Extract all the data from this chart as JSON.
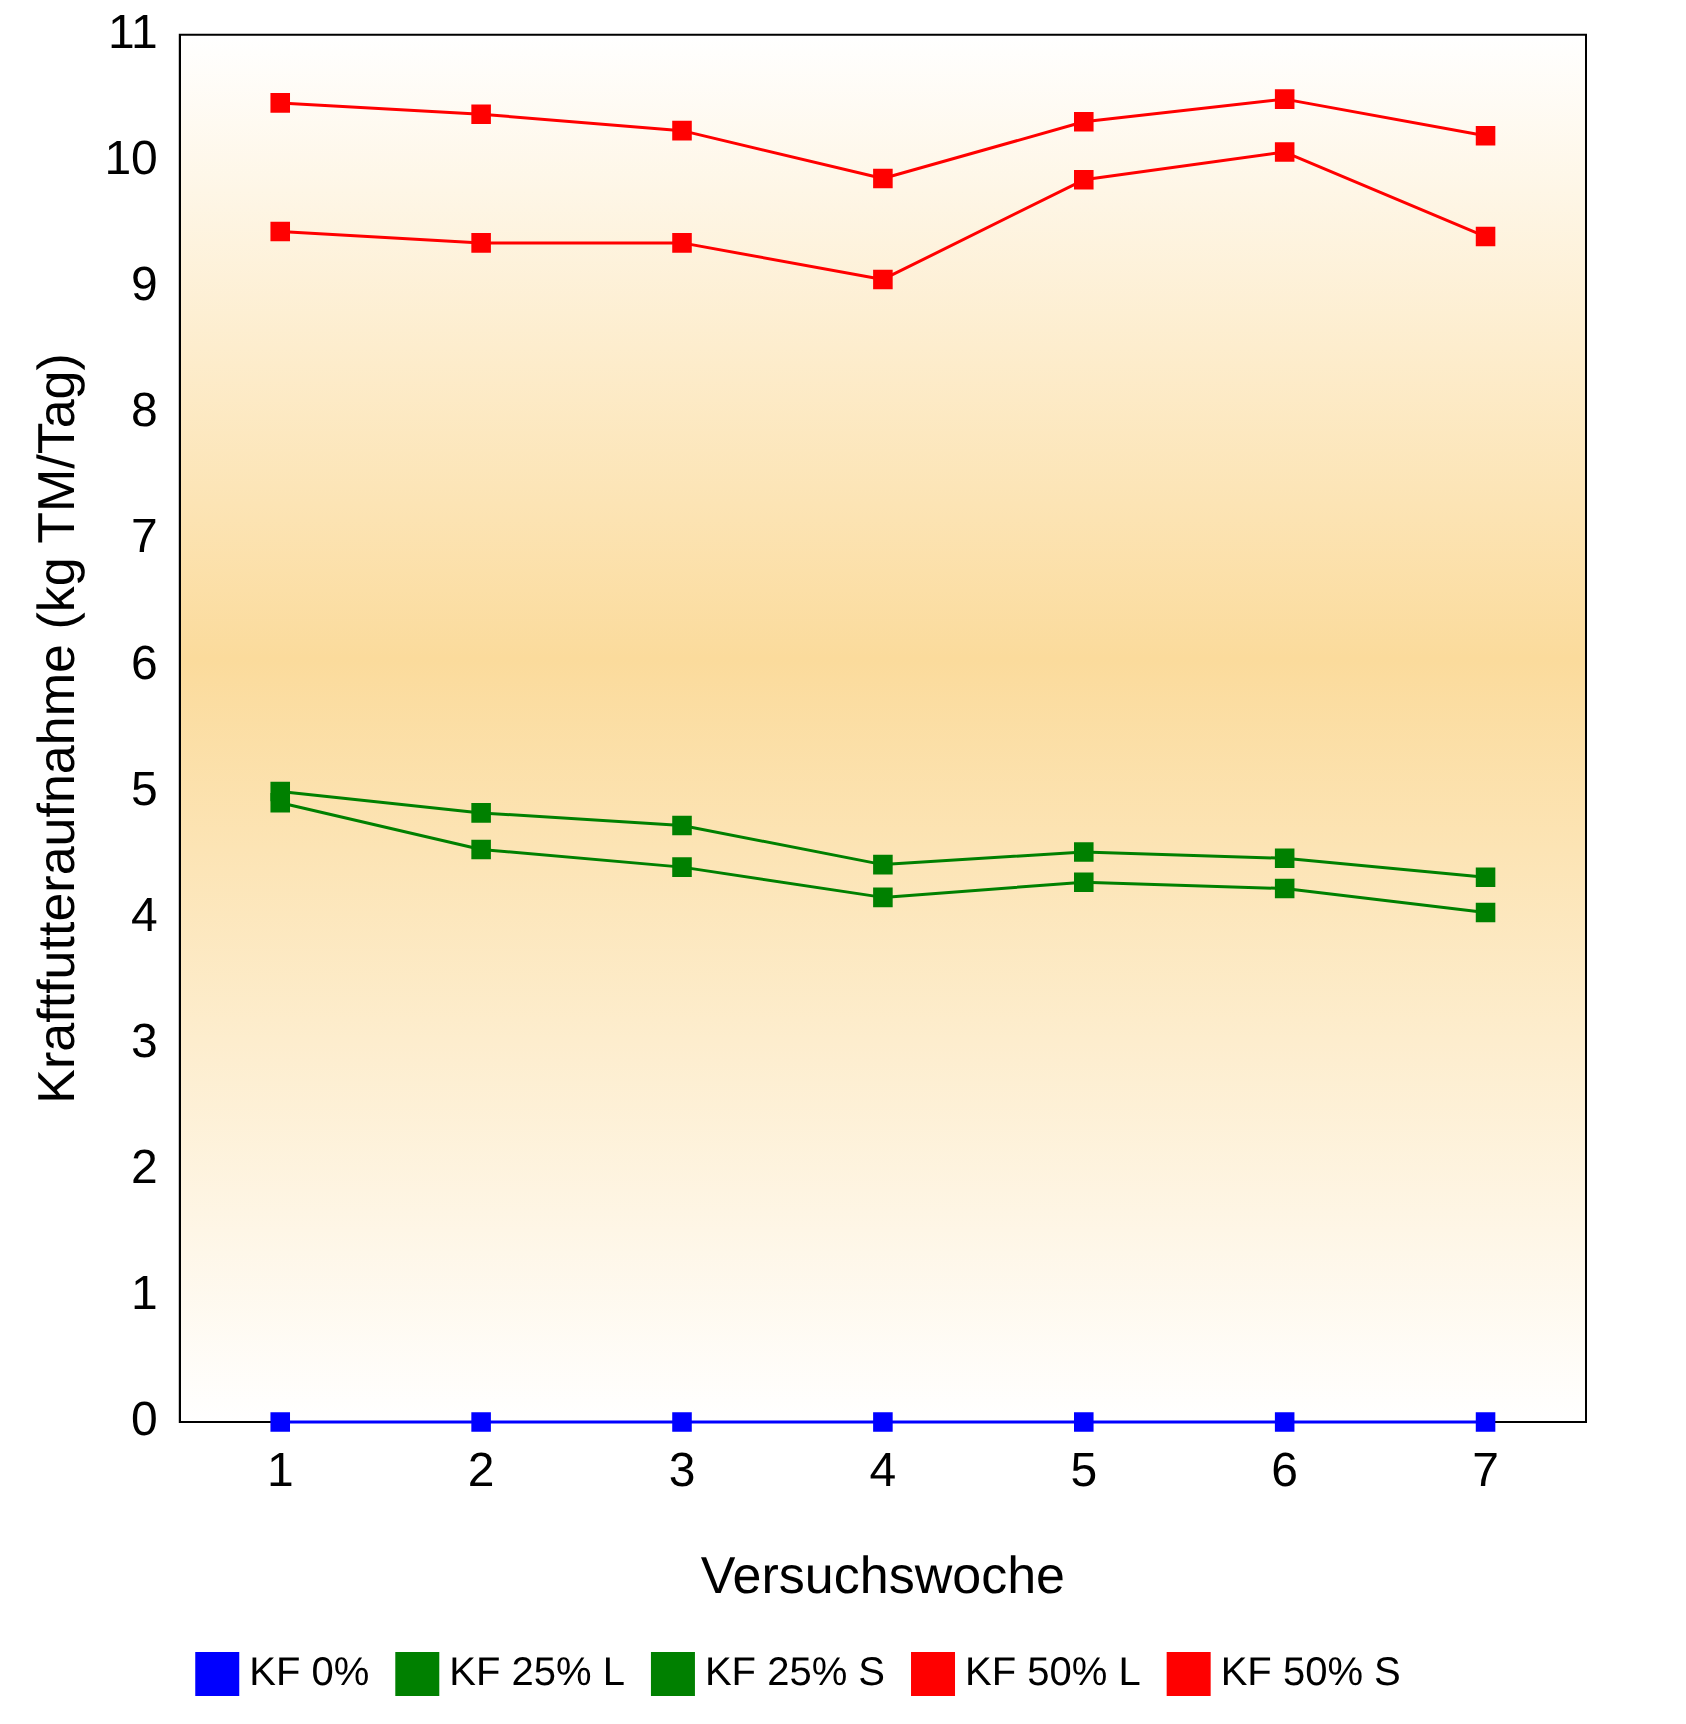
{
  "chart_data": {
    "type": "line",
    "xlabel": "Versuchswoche",
    "ylabel": "Kraftfutteraufnahme (kg TM/Tag)",
    "categories": [
      "1",
      "2",
      "3",
      "4",
      "5",
      "6",
      "7"
    ],
    "series": [
      {
        "name": "KF 0%",
        "color": "#0000ff",
        "values": [
          0,
          0,
          0,
          0,
          0,
          0,
          0
        ]
      },
      {
        "name": "KF 25% L",
        "color": "#008000",
        "values": [
          5.0,
          4.83,
          4.73,
          4.42,
          4.52,
          4.47,
          4.32
        ]
      },
      {
        "name": "KF 25% S",
        "color": "#008000",
        "values": [
          4.91,
          4.54,
          4.4,
          4.16,
          4.28,
          4.23,
          4.04
        ]
      },
      {
        "name": "KF 50% L",
        "color": "#ff0000",
        "values": [
          10.46,
          10.37,
          10.24,
          9.86,
          10.31,
          10.49,
          10.2
        ]
      },
      {
        "name": "KF 50% S",
        "color": "#ff0000",
        "values": [
          9.44,
          9.35,
          9.35,
          9.06,
          9.85,
          10.07,
          9.4
        ]
      }
    ],
    "ylim": [
      0,
      11
    ],
    "yticks": [
      0,
      1,
      2,
      3,
      4,
      5,
      6,
      7,
      8,
      9,
      10,
      11
    ],
    "grid": false,
    "legend": "bottom",
    "marker": "square",
    "line_style": "solid"
  }
}
